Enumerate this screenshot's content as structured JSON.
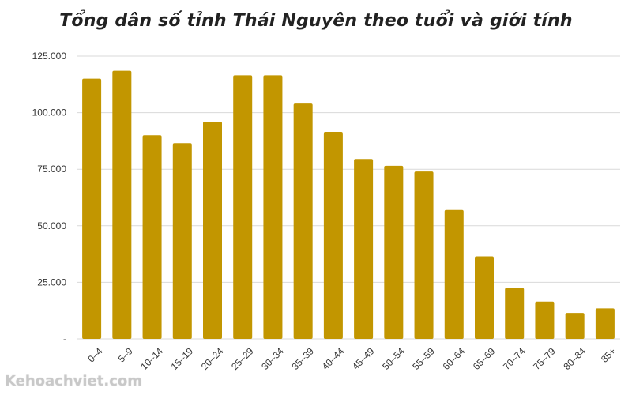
{
  "chart_data": {
    "type": "bar",
    "title": "Tổng dân số tỉnh Thái Nguyên theo tuổi và giới tính",
    "categories": [
      "0–4",
      "5–9",
      "10–14",
      "15–19",
      "20–24",
      "25–29",
      "30–34",
      "35–39",
      "40–44",
      "45–49",
      "50–54",
      "55–59",
      "60–64",
      "65–69",
      "70–74",
      "75–79",
      "80–84",
      "85+"
    ],
    "values": [
      115000,
      118500,
      90000,
      86500,
      96000,
      116500,
      116500,
      104000,
      91500,
      79500,
      76500,
      74000,
      57000,
      36500,
      22500,
      16500,
      11500,
      13500
    ],
    "ylim": [
      0,
      125000
    ],
    "yticks": [
      {
        "value": 0,
        "label": "-"
      },
      {
        "value": 25000,
        "label": "25.000"
      },
      {
        "value": 50000,
        "label": "50.000"
      },
      {
        "value": 75000,
        "label": "75.000"
      },
      {
        "value": 100000,
        "label": "100.000"
      },
      {
        "value": 125000,
        "label": "125.000"
      }
    ],
    "grid": true,
    "bar_color": "#C29600",
    "grid_color": "#D9D9D9"
  },
  "watermark": "Kehoachviet.com"
}
